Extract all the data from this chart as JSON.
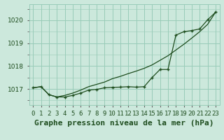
{
  "title": "Graphe pression niveau de la mer (hPa)",
  "background_color": "#cce8dc",
  "grid_color": "#99ccb8",
  "line_color": "#1e4d1e",
  "marker_color": "#1e4d1e",
  "xlim": [
    -0.5,
    23.5
  ],
  "ylim": [
    1016.3,
    1020.7
  ],
  "yticks": [
    1017,
    1018,
    1019,
    1020
  ],
  "xtick_labels": [
    "0",
    "1",
    "2",
    "3",
    "4",
    "5",
    "6",
    "7",
    "8",
    "9",
    "10",
    "11",
    "12",
    "13",
    "14",
    "15",
    "16",
    "17",
    "18",
    "19",
    "20",
    "21",
    "22",
    "23"
  ],
  "series1_x": [
    0,
    1,
    2,
    3,
    4,
    5,
    6,
    7,
    8,
    9,
    10,
    11,
    12,
    13,
    14,
    15,
    16,
    17,
    18,
    19,
    20,
    21,
    22,
    23
  ],
  "series1_y": [
    1017.05,
    1017.1,
    1016.75,
    1016.65,
    1016.65,
    1016.72,
    1016.82,
    1016.95,
    1016.98,
    1017.05,
    1017.07,
    1017.08,
    1017.1,
    1017.08,
    1017.1,
    1017.5,
    1017.85,
    1017.85,
    1019.35,
    1019.5,
    1019.55,
    1019.62,
    1020.02,
    1020.35
  ],
  "series2_x": [
    0,
    1,
    2,
    3,
    4,
    5,
    6,
    7,
    8,
    9,
    10,
    11,
    12,
    13,
    14,
    15,
    16,
    17,
    18,
    19,
    20,
    21,
    22,
    23
  ],
  "series2_y": [
    1017.05,
    1017.1,
    1016.75,
    1016.65,
    1016.72,
    1016.82,
    1016.95,
    1017.1,
    1017.2,
    1017.3,
    1017.45,
    1017.55,
    1017.67,
    1017.78,
    1017.9,
    1018.05,
    1018.25,
    1018.45,
    1018.7,
    1018.95,
    1019.22,
    1019.5,
    1019.82,
    1020.35
  ],
  "title_fontsize": 8,
  "tick_fontsize": 6.5
}
